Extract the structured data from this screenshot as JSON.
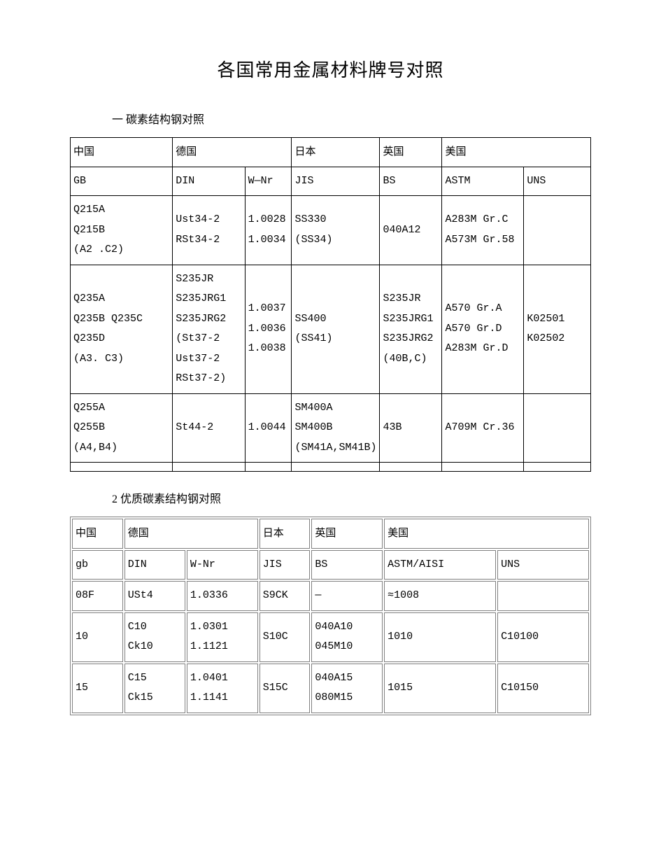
{
  "page": {
    "title": "各国常用金属材料牌号对照",
    "section1_label": "一 碳素结构钢对照",
    "section2_label": "2 优质碳素结构钢对照"
  },
  "table1": {
    "header_countries": {
      "cn": "中国",
      "de": "德国",
      "jp": "日本",
      "uk": "英国",
      "us": "美国"
    },
    "header_std": {
      "cn": "GB",
      "de_din": "DIN",
      "de_wnr": "W—Nr",
      "jp": "JIS",
      "uk": "BS",
      "us_astm": "ASTM",
      "us_uns": "UNS"
    },
    "rows": [
      {
        "cn": "Q215A\nQ215B\n(A2 .C2)",
        "din": "Ust34-2\nRSt34-2",
        "wnr": "1.0028\n1.0034",
        "jis": "SS330\n(SS34)",
        "bs": "040A12",
        "astm": "A283M Gr.C\nA573M Gr.58",
        "uns": ""
      },
      {
        "cn": "Q235A\nQ235B Q235C Q235D\n(A3. C3)",
        "din": "S235JR\nS235JRG1\nS235JRG2\n(St37-2\nUst37-2\nRSt37-2)",
        "wnr": "1.0037\n1.0036\n1.0038",
        "jis": "SS400\n(SS41)",
        "bs": "S235JR\nS235JRG1\nS235JRG2\n(40B,C)",
        "astm": "A570 Gr.A\nA570 Gr.D\nA283M Gr.D",
        "uns": "K02501\nK02502"
      },
      {
        "cn": "Q255A\nQ255B\n(A4,B4)",
        "din": "St44-2",
        "wnr": "1.0044",
        "jis": "SM400A\nSM400B\n(SM41A,SM41B)",
        "bs": "43B",
        "astm": "A709M Cr.36",
        "uns": ""
      },
      {
        "cn": "",
        "din": "",
        "wnr": "",
        "jis": "",
        "bs": "",
        "astm": "",
        "uns": ""
      }
    ]
  },
  "table2": {
    "header_countries": {
      "cn": "中国",
      "de": "德国",
      "jp": "日本",
      "uk": "英国",
      "us": "美国"
    },
    "header_std": {
      "cn": "gb",
      "de_din": "DIN",
      "de_wnr": "W-Nr",
      "jp": "JIS",
      "uk": "BS",
      "us_astm": "ASTM/AISI",
      "us_uns": "UNS"
    },
    "rows": [
      {
        "cn": "08F",
        "din": "USt4",
        "wnr": "1.0336",
        "jis": "S9CK",
        "bs": "—",
        "astm": "≈1008",
        "uns": ""
      },
      {
        "cn": "10",
        "din": "C10\nCk10",
        "wnr": "1.0301\n1.1121",
        "jis": "S10C",
        "bs": "040A10\n045M10",
        "astm": "1010",
        "uns": "C10100"
      },
      {
        "cn": "15",
        "din": "C15\nCk15",
        "wnr": "1.0401\n1.1141",
        "jis": "S15C",
        "bs": "040A15\n080M15",
        "astm": "1015",
        "uns": "C10150"
      }
    ]
  },
  "style": {
    "colwidths_t1": [
      "20%",
      "14%",
      "9%",
      "16%",
      "12%",
      "16%",
      "13%"
    ],
    "colwidths_t2": [
      "10%",
      "12%",
      "14%",
      "10%",
      "14%",
      "22%",
      "18%"
    ],
    "text_color": "#000000",
    "bg_color": "#ffffff",
    "border_color_t1": "#000000",
    "border_color_t2": "#808080",
    "title_fontsize": 26,
    "body_fontsize": 15
  }
}
